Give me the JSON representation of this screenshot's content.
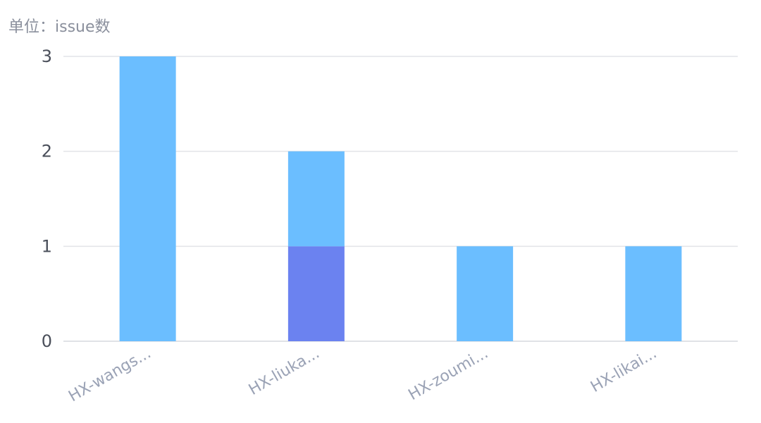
{
  "unit_label": "单位：issue数",
  "chart_data": {
    "type": "bar",
    "stacked": true,
    "categories": [
      "HX-wangs...",
      "HX-liuka...",
      "HX-zoumi...",
      "HX-likai..."
    ],
    "series": [
      {
        "color": "#6b82f0",
        "values": [
          0,
          1,
          0,
          0
        ]
      },
      {
        "color": "#6bbeff",
        "values": [
          3,
          1,
          1,
          1
        ]
      }
    ],
    "yticks": [
      0,
      1,
      2,
      3
    ],
    "ylim": [
      0,
      3
    ],
    "grid": true,
    "title": "",
    "xlabel": "",
    "ylabel": ""
  }
}
